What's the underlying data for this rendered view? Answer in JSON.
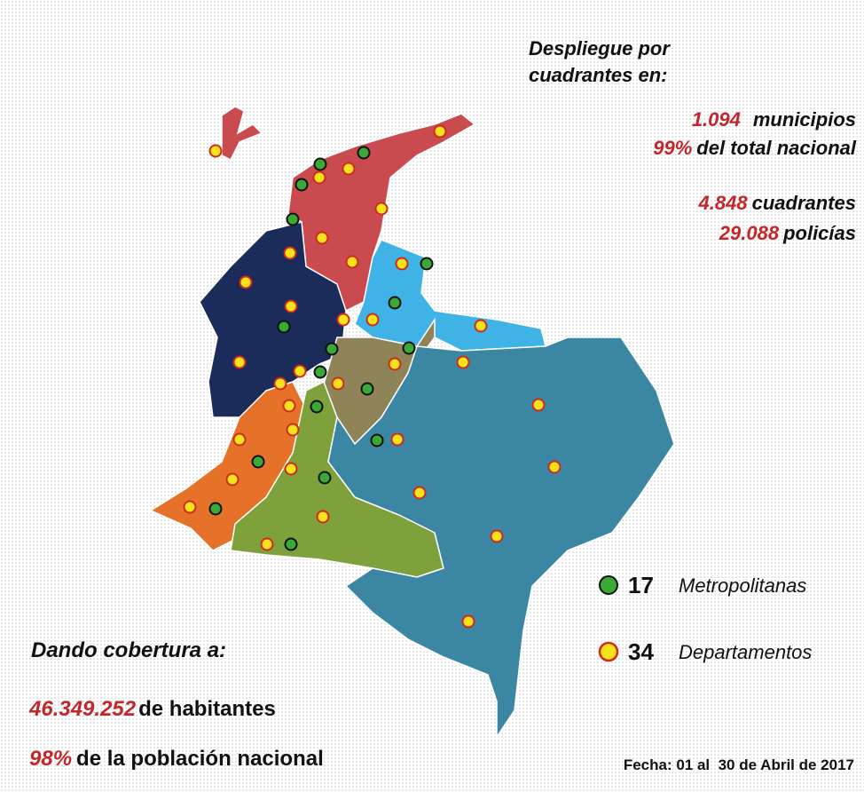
{
  "header": {
    "title_lines": [
      "Despliegue por",
      "cuadrantes en:"
    ]
  },
  "stats": [
    {
      "value": "1.094",
      "label": "municipios"
    },
    {
      "value": "99%",
      "label": "del total nacional"
    },
    {
      "value": "4.848",
      "label": "cuadrantes"
    },
    {
      "value": "29.088",
      "label": "policías"
    }
  ],
  "coverage": {
    "title": "Dando cobertura a:",
    "items": [
      {
        "value": "46.349.252",
        "label": "de habitantes"
      },
      {
        "value": "98%",
        "label": "de la población nacional"
      }
    ]
  },
  "legend": [
    {
      "count": "17",
      "label": "Metropolitanas"
    },
    {
      "count": "34",
      "label": "Departamentos"
    }
  ],
  "footer": "Fecha: 01 al  30 de Abril de 2017"
}
